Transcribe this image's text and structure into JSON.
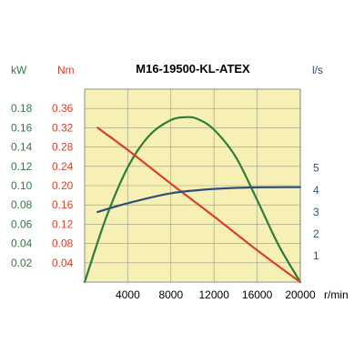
{
  "chart_data": {
    "type": "line",
    "title": "M16-19500-KL-ATEX",
    "x": {
      "unit": "r/min",
      "range": [
        0,
        20000
      ],
      "ticks": [
        4000,
        8000,
        12000,
        16000,
        20000
      ]
    },
    "axes": {
      "power": {
        "label": "kW",
        "color": "#2e7d3e",
        "range": [
          0,
          0.2
        ],
        "ticks": [
          "0.02",
          "0.04",
          "0.06",
          "0.08",
          "0.10",
          "0.12",
          "0.14",
          "0.16",
          "0.18"
        ]
      },
      "torque": {
        "label": "Nm",
        "color": "#d8402a",
        "range": [
          0,
          0.4
        ],
        "ticks": [
          "0.04",
          "0.08",
          "0.12",
          "0.16",
          "0.20",
          "0.24",
          "0.28",
          "0.32",
          "0.36"
        ]
      },
      "flow": {
        "label": "l/s",
        "color": "#2f4f7a",
        "range": [
          -0.2,
          8.6
        ],
        "ticks": [
          "1",
          "2",
          "3",
          "4",
          "5"
        ]
      }
    },
    "grid": true,
    "plot_background": "#f6f0b4",
    "series": [
      {
        "axis": "power",
        "color": "#2e7d3e",
        "points": [
          [
            0,
            0
          ],
          [
            2000,
            0.067
          ],
          [
            4000,
            0.119
          ],
          [
            6000,
            0.152
          ],
          [
            8000,
            0.168
          ],
          [
            9500,
            0.171
          ],
          [
            10500,
            0.169
          ],
          [
            12000,
            0.158
          ],
          [
            14000,
            0.13
          ],
          [
            16000,
            0.085
          ],
          [
            18000,
            0.038
          ],
          [
            20000,
            0
          ]
        ]
      },
      {
        "axis": "torque",
        "color": "#d8402a",
        "points": [
          [
            1200,
            0.32
          ],
          [
            4000,
            0.274
          ],
          [
            8000,
            0.204
          ],
          [
            12000,
            0.136
          ],
          [
            16000,
            0.066
          ],
          [
            20000,
            0
          ]
        ]
      },
      {
        "axis": "flow",
        "color": "#2f4f7a",
        "points": [
          [
            1200,
            3.0
          ],
          [
            4000,
            3.4
          ],
          [
            8000,
            3.85
          ],
          [
            12000,
            4.05
          ],
          [
            16000,
            4.12
          ],
          [
            20000,
            4.13
          ]
        ]
      }
    ]
  }
}
